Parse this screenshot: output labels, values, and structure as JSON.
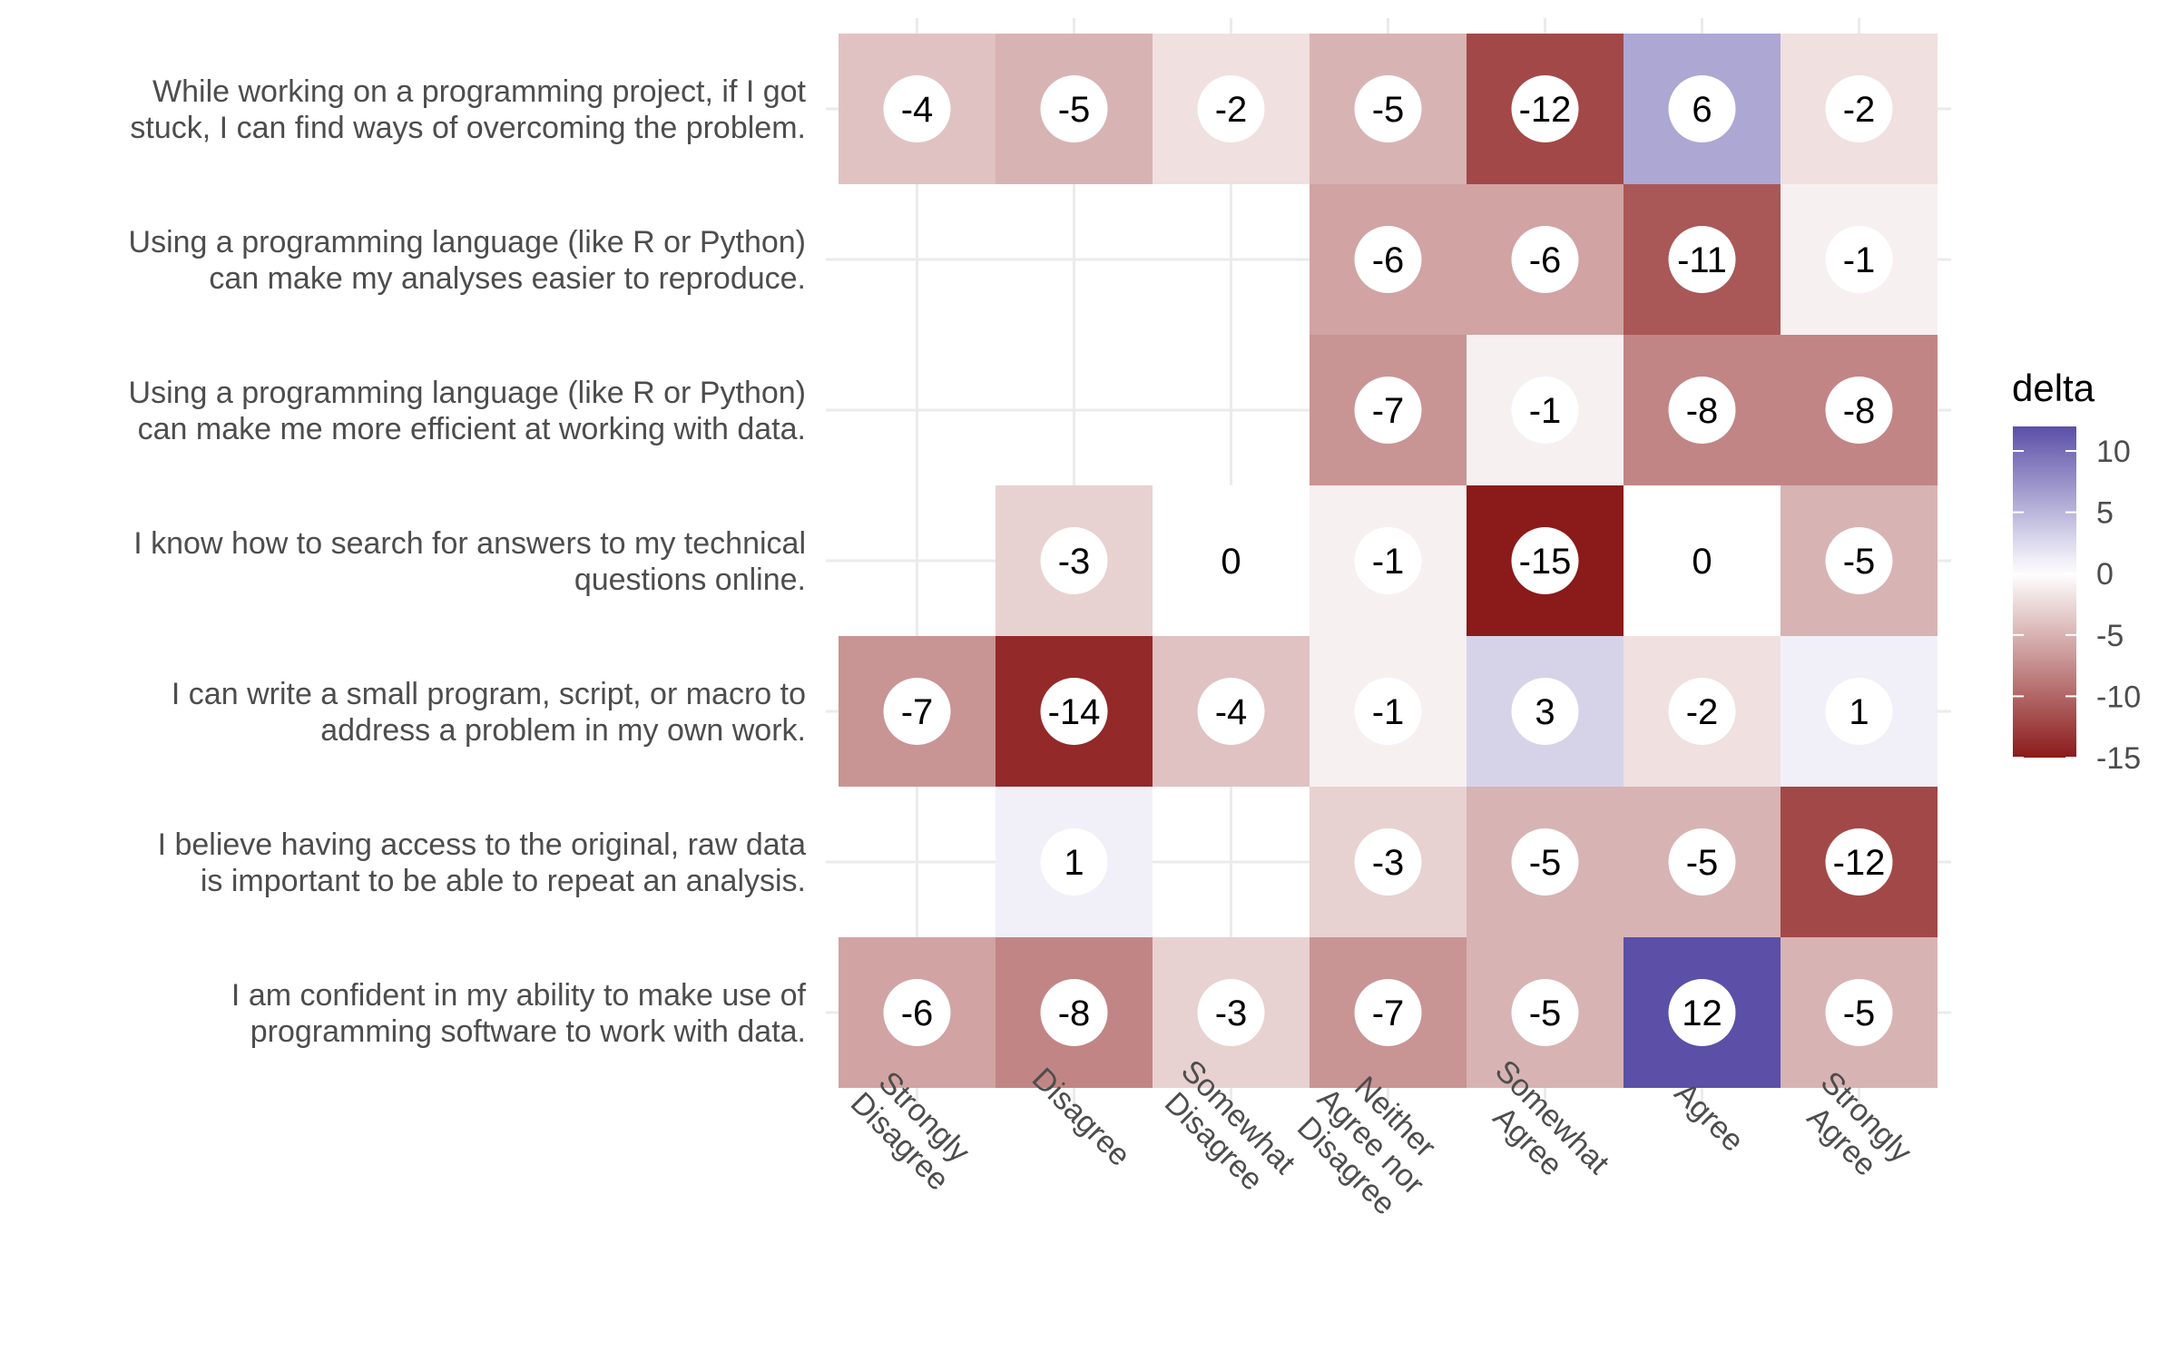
{
  "chart_data": {
    "type": "heatmap",
    "x_categories": [
      "Strongly\nDisagree",
      "Disagree",
      "Somewhat\nDisagree",
      "Neither\nAgree nor\nDisagree",
      "Somewhat\nAgree",
      "Agree",
      "Strongly\nAgree"
    ],
    "y_categories": [
      "While working on a programming project, if I got\nstuck, I can find ways of overcoming the problem.",
      "Using a programming language (like R or Python)\ncan make my analyses easier to reproduce.",
      "Using a programming language (like R or Python)\ncan make me more efficient at working with data.",
      "I know how to search for answers to my technical\nquestions online.",
      "I can write a small program, script, or macro to\naddress a problem in my own work.",
      "I believe having access to the original, raw data\nis important to be able to repeat an analysis.",
      "I am confident in my ability to make use of\nprogramming software to work with data."
    ],
    "values": [
      [
        -4,
        -5,
        -2,
        -5,
        -12,
        6,
        -2
      ],
      [
        null,
        null,
        null,
        -6,
        -6,
        -11,
        -1
      ],
      [
        null,
        null,
        null,
        -7,
        -1,
        -8,
        -8
      ],
      [
        null,
        -3,
        0,
        -1,
        -15,
        0,
        -5
      ],
      [
        -7,
        -14,
        -4,
        -1,
        3,
        -2,
        1
      ],
      [
        null,
        1,
        null,
        -3,
        -5,
        -5,
        -12
      ],
      [
        -6,
        -8,
        -3,
        -7,
        -5,
        12,
        -5
      ]
    ],
    "legend": {
      "title": "delta",
      "range": [
        -15,
        12
      ],
      "ticks": [
        10,
        5,
        0,
        -5,
        -10,
        -15
      ],
      "colors": {
        "low": "#8b1a1a",
        "mid": "#ffffff",
        "high": "#5b4fa8"
      },
      "placement": "right"
    },
    "grid": true
  }
}
